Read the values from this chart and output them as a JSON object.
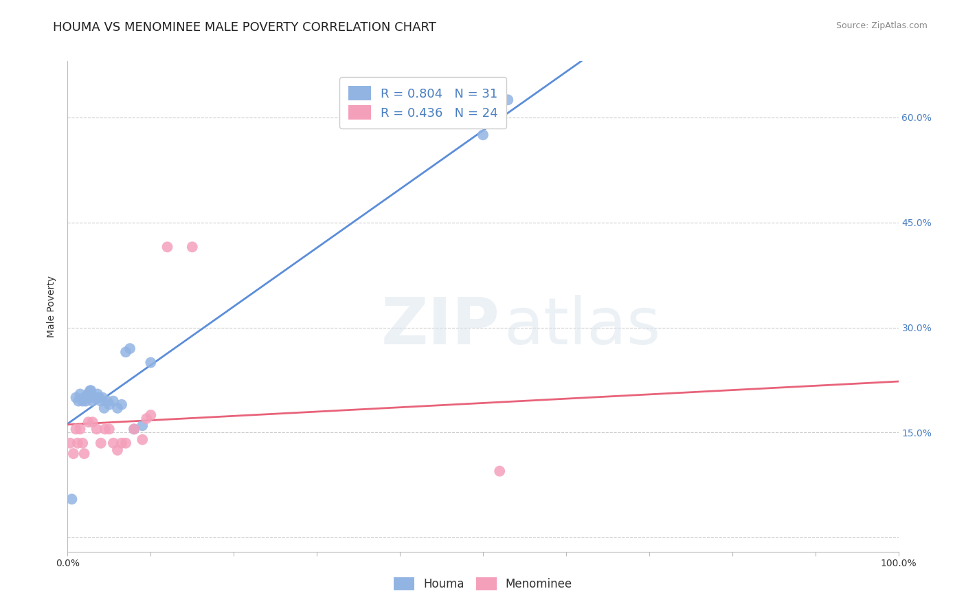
{
  "title": "HOUMA VS MENOMINEE MALE POVERTY CORRELATION CHART",
  "source": "Source: ZipAtlas.com",
  "ylabel": "Male Poverty",
  "xlim": [
    0,
    1.0
  ],
  "ylim": [
    -0.02,
    0.68
  ],
  "yticks": [
    0.0,
    0.15,
    0.3,
    0.45,
    0.6
  ],
  "yticklabels_right": [
    "",
    "15.0%",
    "30.0%",
    "45.0%",
    "60.0%"
  ],
  "xticks": [
    0.0,
    0.1,
    0.2,
    0.3,
    0.4,
    0.5,
    0.6,
    0.7,
    0.8,
    0.9,
    1.0
  ],
  "xticklabels_bottom": [
    "0.0%",
    "",
    "",
    "",
    "",
    "",
    "",
    "",
    "",
    "",
    "100.0%"
  ],
  "houma_R": 0.804,
  "houma_N": 31,
  "menominee_R": 0.436,
  "menominee_N": 24,
  "houma_color": "#92b4e3",
  "menominee_color": "#f4a0bb",
  "houma_line_color": "#5b8dd9",
  "menominee_line_color": "#e8637a",
  "background_color": "#ffffff",
  "grid_color": "#cccccc",
  "houma_x": [
    0.005,
    0.01,
    0.013,
    0.015,
    0.018,
    0.02,
    0.022,
    0.024,
    0.025,
    0.027,
    0.028,
    0.03,
    0.032,
    0.034,
    0.036,
    0.038,
    0.04,
    0.042,
    0.044,
    0.048,
    0.05,
    0.055,
    0.06,
    0.065,
    0.07,
    0.075,
    0.08,
    0.09,
    0.1,
    0.5,
    0.53
  ],
  "houma_y": [
    0.055,
    0.2,
    0.195,
    0.205,
    0.195,
    0.2,
    0.195,
    0.205,
    0.2,
    0.21,
    0.21,
    0.195,
    0.2,
    0.2,
    0.205,
    0.2,
    0.195,
    0.2,
    0.185,
    0.195,
    0.19,
    0.195,
    0.185,
    0.19,
    0.265,
    0.27,
    0.155,
    0.16,
    0.25,
    0.575,
    0.625
  ],
  "menominee_x": [
    0.003,
    0.007,
    0.01,
    0.012,
    0.015,
    0.018,
    0.02,
    0.025,
    0.03,
    0.035,
    0.04,
    0.045,
    0.05,
    0.055,
    0.06,
    0.065,
    0.07,
    0.08,
    0.09,
    0.095,
    0.1,
    0.12,
    0.15,
    0.52
  ],
  "menominee_y": [
    0.135,
    0.12,
    0.155,
    0.135,
    0.155,
    0.135,
    0.12,
    0.165,
    0.165,
    0.155,
    0.135,
    0.155,
    0.155,
    0.135,
    0.125,
    0.135,
    0.135,
    0.155,
    0.14,
    0.17,
    0.175,
    0.415,
    0.415,
    0.095
  ],
  "watermark_zip": "ZIP",
  "watermark_atlas": "atlas",
  "title_fontsize": 13,
  "axis_label_fontsize": 10,
  "tick_fontsize": 10,
  "legend_fontsize": 13
}
